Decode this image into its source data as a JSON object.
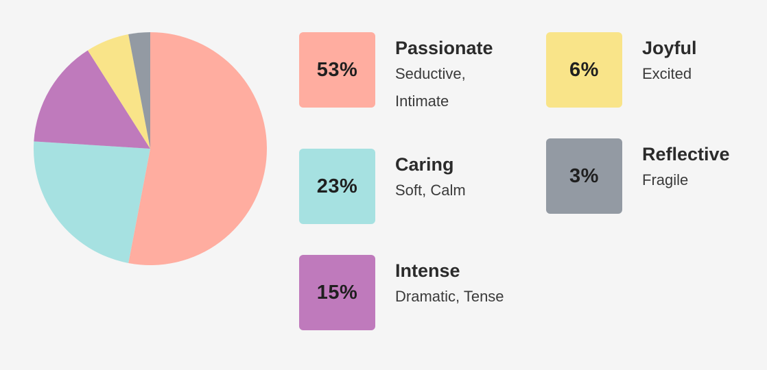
{
  "chart_data": {
    "type": "pie",
    "slices": [
      {
        "label": "Passionate",
        "value": 53,
        "percent_label": "53%",
        "description": "Seductive, Intimate",
        "color": "#ffada0"
      },
      {
        "label": "Caring",
        "value": 23,
        "percent_label": "23%",
        "description": "Soft, Calm",
        "color": "#a6e1e1"
      },
      {
        "label": "Intense",
        "value": 15,
        "percent_label": "15%",
        "description": "Dramatic, Tense",
        "color": "#bf7abc"
      },
      {
        "label": "Joyful",
        "value": 6,
        "percent_label": "6%",
        "description": "Excited",
        "color": "#f9e489"
      },
      {
        "label": "Reflective",
        "value": 3,
        "percent_label": "3%",
        "description": "Fragile",
        "color": "#939aa3"
      }
    ],
    "legend_position": "right"
  }
}
